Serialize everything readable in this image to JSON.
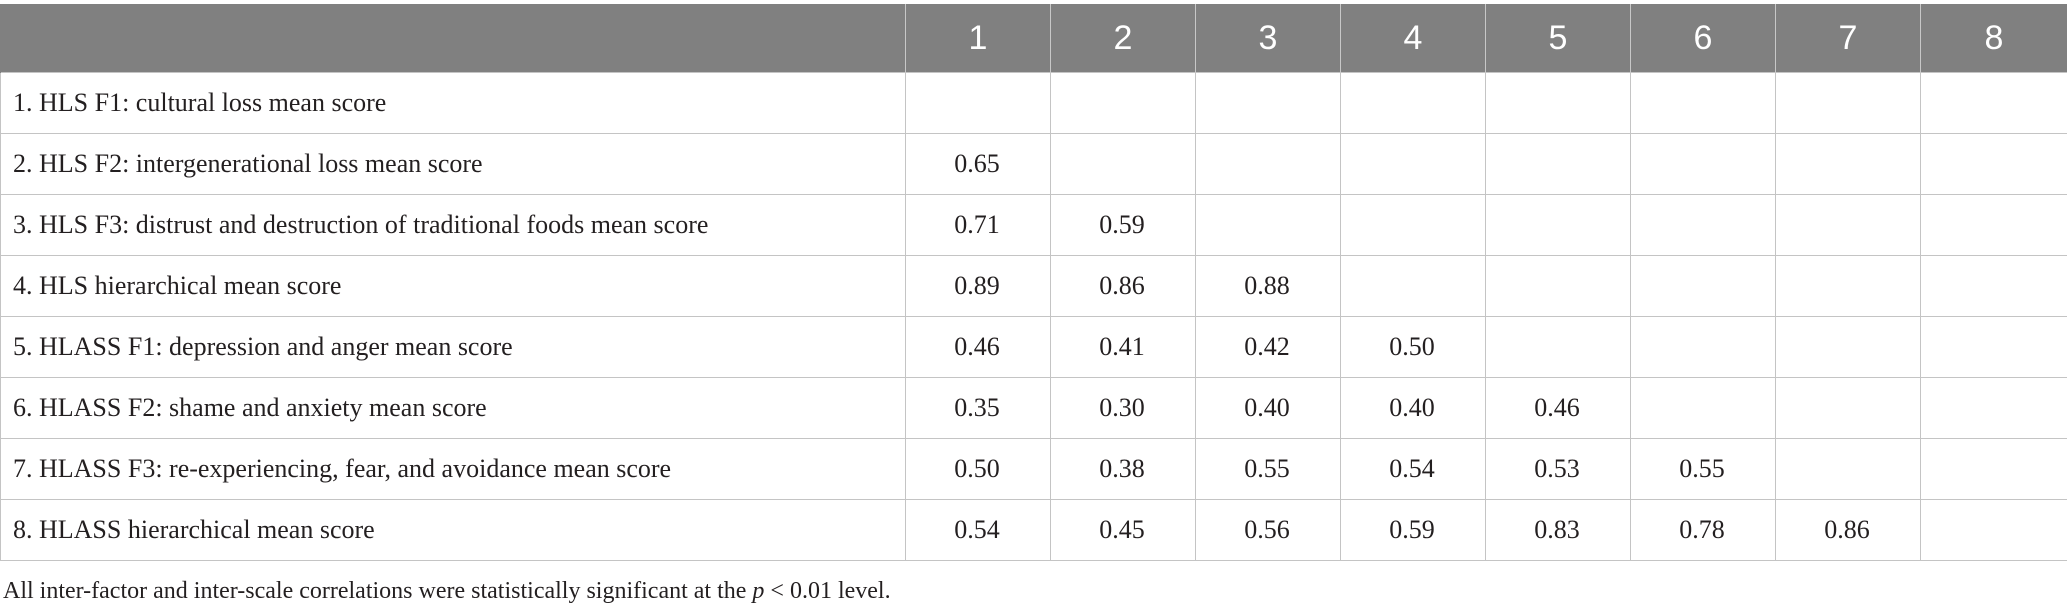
{
  "table": {
    "corner_header": "",
    "column_headers": [
      "1",
      "2",
      "3",
      "4",
      "5",
      "6",
      "7",
      "8"
    ],
    "rows": [
      {
        "label": "1. HLS F1: cultural loss mean score",
        "cells": [
          "",
          "",
          "",
          "",
          "",
          "",
          "",
          ""
        ]
      },
      {
        "label": "2. HLS F2: intergenerational loss mean score",
        "cells": [
          "0.65",
          "",
          "",
          "",
          "",
          "",
          "",
          ""
        ]
      },
      {
        "label": "3. HLS F3: distrust and destruction of traditional foods mean score",
        "cells": [
          "0.71",
          "0.59",
          "",
          "",
          "",
          "",
          "",
          ""
        ]
      },
      {
        "label": "4. HLS hierarchical mean score",
        "cells": [
          "0.89",
          "0.86",
          "0.88",
          "",
          "",
          "",
          "",
          ""
        ]
      },
      {
        "label": "5. HLASS F1: depression and anger mean score",
        "cells": [
          "0.46",
          "0.41",
          "0.42",
          "0.50",
          "",
          "",
          "",
          ""
        ]
      },
      {
        "label": "6. HLASS F2: shame and anxiety mean score",
        "cells": [
          "0.35",
          "0.30",
          "0.40",
          "0.40",
          "0.46",
          "",
          "",
          ""
        ]
      },
      {
        "label": "7. HLASS F3: re-experiencing, fear, and avoidance mean score",
        "cells": [
          "0.50",
          "0.38",
          "0.55",
          "0.54",
          "0.53",
          "0.55",
          "",
          ""
        ]
      },
      {
        "label": "8. HLASS hierarchical mean score",
        "cells": [
          "0.54",
          "0.45",
          "0.56",
          "0.59",
          "0.83",
          "0.78",
          "0.86",
          ""
        ]
      }
    ]
  },
  "footnote": {
    "before": "All inter-factor and inter-scale correlations were statistically significant at the ",
    "italic": "p",
    "after": " < 0.01 level."
  },
  "colors": {
    "header_background": "#808080",
    "header_text": "#ffffff",
    "grid_line": "#c4c4c4",
    "body_text": "#231f20"
  }
}
